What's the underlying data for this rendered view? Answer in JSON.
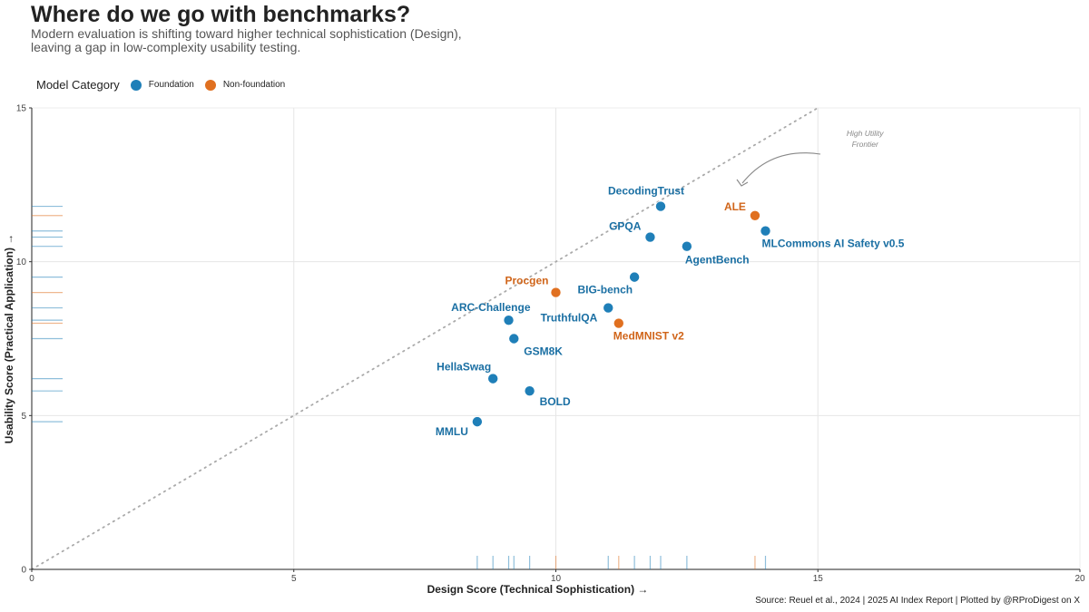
{
  "header": {
    "title": "Where do we go with benchmarks?",
    "subtitle": "Modern evaluation is shifting toward higher technical sophistication (Design), leaving a gap in low-complexity usability testing."
  },
  "legend": {
    "title": "Model Category",
    "items": [
      {
        "label": "Foundation",
        "color": "#1f7fb8"
      },
      {
        "label": "Non-foundation",
        "color": "#e07020"
      }
    ]
  },
  "colors": {
    "foundation": "#1f7fb8",
    "foundation_label": "#1a6fa3",
    "non_foundation": "#e07020",
    "non_foundation_label": "#d0651a"
  },
  "footer": {
    "source": "Source: Reuel et al., 2024 | 2025 AI Index Report | Plotted by @RProDigest on X"
  },
  "chart_data": {
    "type": "scatter",
    "xlabel": "Design Score (Technical Sophistication) →",
    "ylabel": "Usability Score (Practical Application) →",
    "xlim": [
      0,
      20
    ],
    "ylim": [
      0,
      15
    ],
    "xticks": [
      0,
      5,
      10,
      15,
      20
    ],
    "yticks": [
      0,
      5,
      10,
      15
    ],
    "grid": true,
    "legend_position": "top-left",
    "reference_line": {
      "slope": 1,
      "intercept": 0,
      "style": "dotted"
    },
    "annotation": {
      "text": [
        "High Utility",
        "Frontier"
      ],
      "x": 15.9,
      "y": 14.2
    },
    "rug": true,
    "points": [
      {
        "label": "DecodingTrust",
        "category": "Foundation",
        "x": 12.0,
        "y": 11.8
      },
      {
        "label": "ALE",
        "category": "Non-foundation",
        "x": 13.8,
        "y": 11.5
      },
      {
        "label": "MLCommons AI Safety v0.5",
        "category": "Foundation",
        "x": 14.0,
        "y": 11.0
      },
      {
        "label": "GPQA",
        "category": "Foundation",
        "x": 11.8,
        "y": 10.8
      },
      {
        "label": "AgentBench",
        "category": "Foundation",
        "x": 12.5,
        "y": 10.5
      },
      {
        "label": "BIG-bench",
        "category": "Foundation",
        "x": 11.5,
        "y": 9.5
      },
      {
        "label": "Procgen",
        "category": "Non-foundation",
        "x": 10.0,
        "y": 9.0
      },
      {
        "label": "TruthfulQA",
        "category": "Foundation",
        "x": 11.0,
        "y": 8.5
      },
      {
        "label": "ARC-Challenge",
        "category": "Foundation",
        "x": 9.1,
        "y": 8.1
      },
      {
        "label": "MedMNIST v2",
        "category": "Non-foundation",
        "x": 11.2,
        "y": 8.0
      },
      {
        "label": "GSM8K",
        "category": "Foundation",
        "x": 9.2,
        "y": 7.5
      },
      {
        "label": "HellaSwag",
        "category": "Foundation",
        "x": 8.8,
        "y": 6.2
      },
      {
        "label": "BOLD",
        "category": "Foundation",
        "x": 9.5,
        "y": 5.8
      },
      {
        "label": "MMLU",
        "category": "Foundation",
        "x": 8.5,
        "y": 4.8
      }
    ]
  }
}
